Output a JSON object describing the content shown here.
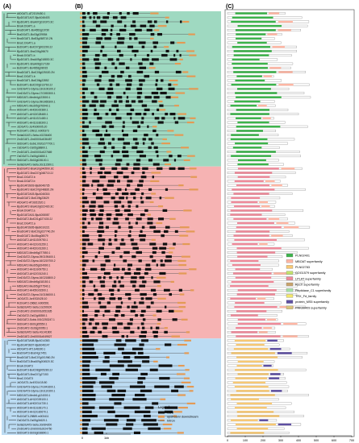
{
  "panels": {
    "a": "(A)",
    "b": "(B)",
    "c": "(C)"
  },
  "groups": [
    {
      "name": "DGAT1",
      "color": "#9fd9c1",
      "genes": [
        "AtDGAT1-AT2G19450.1",
        "BjuDGAT1A07-BjuA046403",
        "BjuDGAT1-BraA07g010370.3C",
        "BnaA.DGAT1.a",
        "BnaDGAT1-Bo4653g16730",
        "BraDGAT1-Bo03g029554",
        "BnaDGAT1-Bol03g068710.2N",
        "BnaC.DGAT1.a",
        "BoDGAT1-BolC07g002290.2J",
        "BjuDGAT1-BraC06g26670",
        "BnaA.DGAT1.b",
        "BjuDGAT1-BraA09g018830.3C",
        "BjuDGAT1-BraA09g017169",
        "BoDGAT1-Bo4653g08015",
        "BnaDGAT1-BolC03g025020.2N",
        "BnaC.DGAT1.b",
        "BnaDGAT1-BolC06g22852",
        "BoDGAT1-BolC09g013760.2J",
        "GmDGAT1-Glyma.13G106100.2",
        "GmDGAT1-Glyma.17G053300.1",
        "MtDGAT1-Medtr4g123500.1",
        "GmDGAT1-Glyma.09G065300.1",
        "MtDGAT1-Medtr5g076940.1",
        "AhDGAT1-AH03G02380.1",
        "AhDGAT1-AH13G28480.1",
        "AhDGAT1-AH11G21480.1",
        "AhDGAT1-AH11G36300.1",
        "JcDGAT1-Jcr4S00005.20",
        "RcDGAT1-29912.m005373",
        "SeitaDGAT1-Seita.4G236400",
        "ZmDGAT1-Zm00001d036457",
        "SbDGAT1-Sobic.002G277700.1",
        "OsDGAT1-Os05g38800.1",
        "ZmDGAT1-Zm00001d027669",
        "OsDGAT1-Os06g16650.1",
        "SbDGAT1-Sb02g028100.1",
        "SeitaDGAT1-Seita.3G112300.1"
      ]
    },
    {
      "name": "DGAT2",
      "color": "#f6b3b3",
      "genes": [
        "BraDGAT2-BraA10g040590.3C",
        "BjuDGAT2-BraC07g048710.2J",
        "BnaC.DGAT2.b",
        "BnaA.DGAT2.b",
        "BjuDGAT2B03-BjuB046735",
        "BjuDGAT2-BolC07g048820.2N",
        "BjuDGAT2A03-BjuA046316",
        "BnaDGAT2-BolC09g23629",
        "AtDGAT2-AT3G51520.1",
        "BjuDGAT2-BraA10g022430.3C",
        "BnaA.DGAT2.a",
        "BjuDGAT2A01-BjuA008087",
        "BoDGAT2-BolC01g027430.2J",
        "BnaC.DGAT2.a",
        "BjuDGAT2B05-BjuB010221",
        "BnaDGAT2-BolC01g027740.2N",
        "BnaDGAT2-Bo4Bog08079",
        "AhDGAT2-AH11G09750.1",
        "AhDGAT2-AH12G01250.1",
        "AhDGAT2-AH02G01260.1",
        "MtDGAT2-Medtr5g077550.1",
        "GmDGAT2-Glyma.09G195400.1",
        "GmDGAT2-Glyma.16G219700.2",
        "MtDGAT2-Medtr5g024990.1",
        "AhDGAT2-AH11G09750.1",
        "AhDGAT2-AH12G01240.1",
        "GmDGAT2-Glyma.16G218800.2",
        "MtDGAT2-Medtr5g018150.1",
        "MtDGAT2-Medtr5g077540.1",
        "AhDGAT2-AH05G01500.1",
        "GmDGAT2-Glyma.01G156000.1",
        "JcDGAT2-Jcr4S02428.10",
        "RcDGAT2-29682.m000591",
        "SeitaDGAT2-Seita.1G299100",
        "ZmDGAT2-Zm00001d051635",
        "OsDGAT2-Os02g48350.1",
        "SbDGAT2-Sobic.001G253247.1",
        "SbDGAT2-Sb01g05550.1",
        "ZmDGAT2-Os03g20950.1",
        "SeitaDGAT2-Seita.4G141600",
        "ZmDGAT2-Zm00001d049527"
      ]
    },
    {
      "name": "DGAT3",
      "color": "#bcdcf3",
      "genes": [
        "BjuDGAT3A08-BjuA014363",
        "BjuDGAT3B07-BjuB046147",
        "AtDGAT3-AT1G48300.1",
        "BraDGAT3-Bra04g17451",
        "BnaDGAT3-BolC07g001960.2N",
        "BraDGAT3-BraA09g004520.3C",
        "BnaA.DGAT3",
        "BoDGAT3-BolC08g005280.2J",
        "BjuDGAT3-BraC07g27153",
        "BnaC.DGAT3",
        "JcDGAT3-Jcr4S01415.80",
        "GmDGAT3-Glyma.17G041600.1",
        "GmDGAT3-Glyma.13G110300.1",
        "MtDGAT3-Medtr1g124000.1",
        "AhDGAT3-AH12G09100.1",
        "AhDGAT3-AH02G14730.1",
        "AhDGAT3-AH11G28170.1",
        "AhDGAT3-AH12G30670.1",
        "RcDGAT3-29889.m003411",
        "OsDGAT3-Os05g04620.1",
        "SeitaDGAT3-Seita.3G084200",
        "ZmDGAT3-Zm00001d024750",
        "SbDGAT3-Sb03g038890.1"
      ]
    }
  ],
  "domain_legend": [
    {
      "label": "PLN02401",
      "color": "#3cb44b"
    },
    {
      "label": "MBOAT superfamily",
      "color": "#ffb6a3"
    },
    {
      "label": "PLN02783",
      "color": "#f7c873"
    },
    {
      "label": "COG1579 superfamily",
      "color": "#c4e26b"
    },
    {
      "label": "LPLAT superfamily",
      "color": "#f08a9a"
    },
    {
      "label": "RecX superfamily",
      "color": "#c8a36b"
    },
    {
      "label": "Peptidase_C1 superfamily",
      "color": "#a4e0a4"
    },
    {
      "label": "TRX_Fd_family",
      "color": "#f3e76b"
    },
    {
      "label": "protein_MS5 superfamily",
      "color": "#5e4fa2"
    },
    {
      "label": "PRK00409 superfamily",
      "color": "#d9c47a"
    }
  ],
  "gene_legend": {
    "title": "Legend:",
    "items": [
      {
        "label": "CDS",
        "color": "#111111"
      },
      {
        "label": "upstream/ downstream",
        "color": "#e39a55"
      },
      {
        "label": "Intron",
        "color": "#555555"
      }
    ]
  },
  "axis_b": {
    "ticks": [
      "0",
      "1kb"
    ]
  },
  "axis_c": {
    "ticks": [
      "0",
      "100",
      "200",
      "300",
      "400",
      "500",
      "600",
      "700"
    ]
  }
}
